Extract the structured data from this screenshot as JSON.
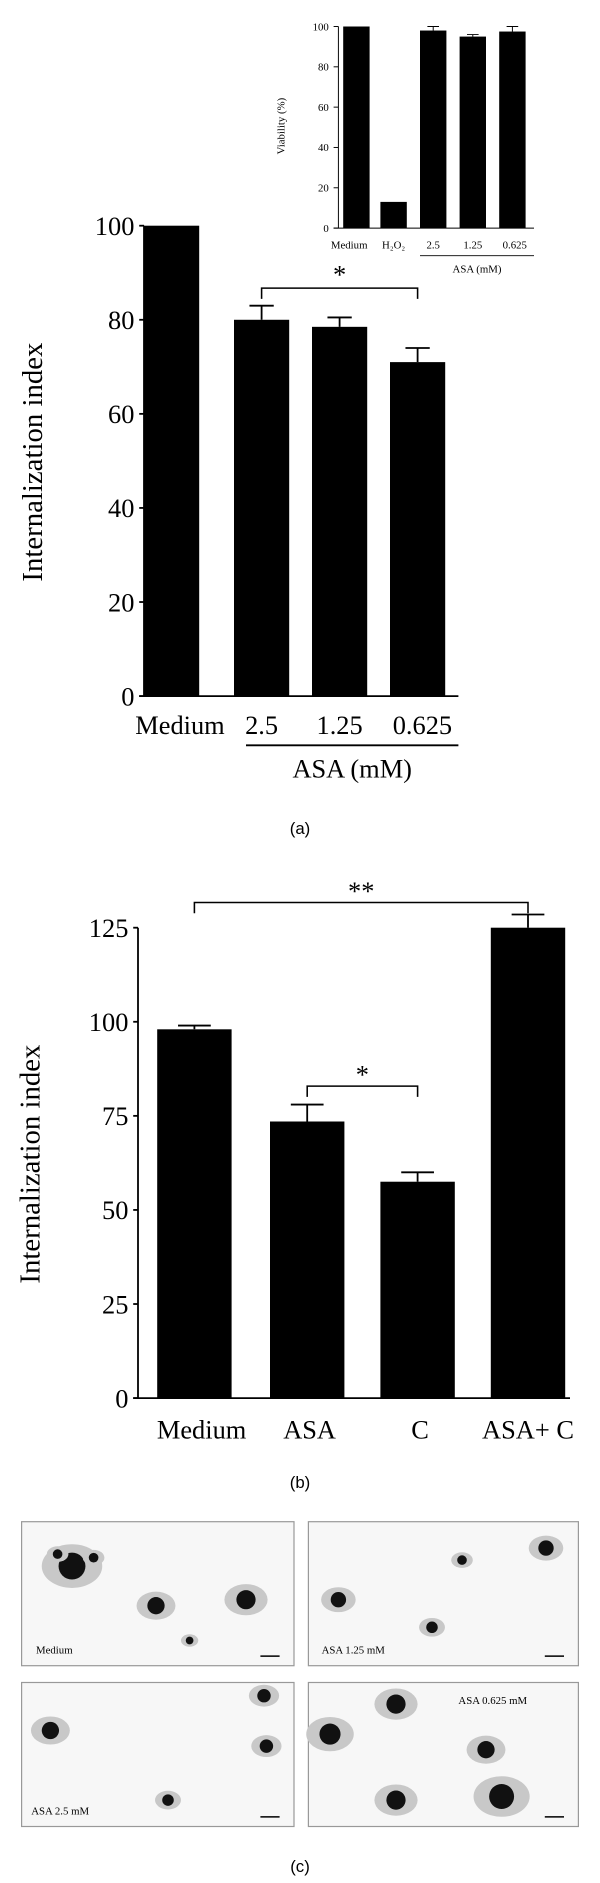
{
  "chart_data": [
    {
      "type": "bar",
      "caption": "(a)",
      "ylabel": "Internalization index",
      "categories": [
        "Medium",
        "2.5",
        "1.25",
        "0.625"
      ],
      "group_label": "ASA (mM)",
      "series": [
        {
          "color": "#000000",
          "values": [
            100,
            80,
            78.5,
            71
          ],
          "errors": [
            null,
            3,
            2,
            3
          ]
        }
      ],
      "ylim": [
        0,
        100
      ],
      "yticks": [
        0,
        20,
        40,
        60,
        80,
        100
      ],
      "annotations": [
        "*"
      ]
    },
    {
      "type": "bar",
      "ylabel": "Viability (%)",
      "categories": [
        "Medium",
        "H₂O₂",
        "2.5",
        "1.25",
        "0.625"
      ],
      "group_label": "ASA (mM)",
      "series": [
        {
          "color": "#000000",
          "values": [
            100,
            13,
            98,
            95,
            97.5
          ],
          "errors": [
            null,
            null,
            2,
            1,
            2.5
          ]
        }
      ],
      "ylim": [
        0,
        100
      ],
      "yticks": [
        0,
        20,
        40,
        60,
        80,
        100
      ]
    },
    {
      "type": "bar",
      "caption": "(b)",
      "ylabel": "Internalization index",
      "categories": [
        "Medium",
        "ASA",
        "C",
        "ASA+ C"
      ],
      "series": [
        {
          "color": "#000000",
          "values": [
            98,
            73.5,
            57.5,
            125
          ],
          "errors": [
            1,
            4.5,
            2.5,
            3.5
          ]
        }
      ],
      "ylim": [
        0,
        125
      ],
      "yticks": [
        0,
        25,
        50,
        75,
        100,
        125
      ],
      "annotations": [
        "**",
        "*"
      ]
    }
  ],
  "panel_c": {
    "caption": "(c)",
    "images": [
      {
        "label": "Medium"
      },
      {
        "label": "ASA 1.25 mM"
      },
      {
        "label": "ASA 2.5 mM"
      },
      {
        "label": "ASA 0.625 mM"
      }
    ]
  }
}
